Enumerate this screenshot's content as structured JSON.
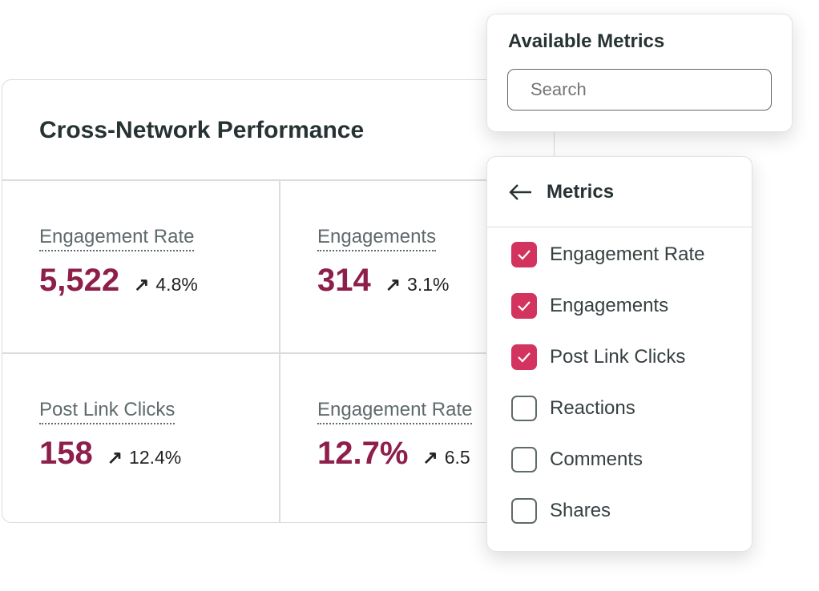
{
  "card": {
    "title": "Cross-Network Performance",
    "metrics": [
      {
        "label": "Engagement Rate",
        "value": "5,522",
        "change": "4.8%"
      },
      {
        "label": "Engagements",
        "value": "314",
        "change": "3.1%"
      },
      {
        "label": "Post Link Clicks",
        "value": "158",
        "change": "12.4%"
      },
      {
        "label": "Engagement Rate",
        "value": "12.7%",
        "change": "6.5"
      }
    ]
  },
  "available": {
    "title": "Available Metrics",
    "search_placeholder": "Search"
  },
  "metrics_panel": {
    "title": "Metrics",
    "items": [
      {
        "label": "Engagement Rate",
        "checked": true
      },
      {
        "label": "Engagements",
        "checked": true
      },
      {
        "label": "Post Link Clicks",
        "checked": true
      },
      {
        "label": "Reactions",
        "checked": false
      },
      {
        "label": "Comments",
        "checked": false
      },
      {
        "label": "Shares",
        "checked": false
      }
    ]
  },
  "colors": {
    "value": "#8e1f4b",
    "checkbox": "#d3335f"
  }
}
